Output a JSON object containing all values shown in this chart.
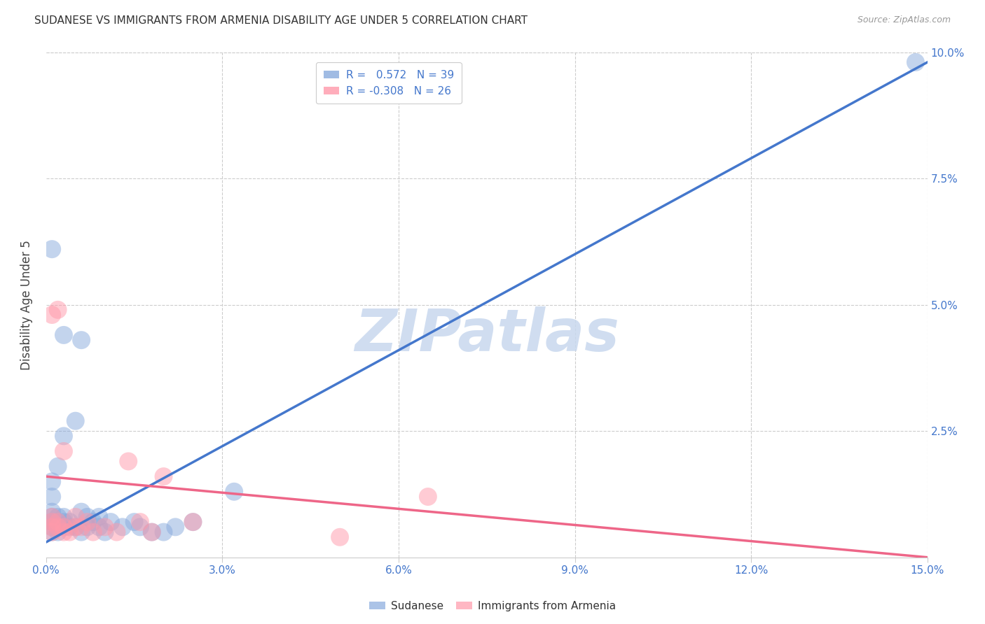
{
  "title": "SUDANESE VS IMMIGRANTS FROM ARMENIA DISABILITY AGE UNDER 5 CORRELATION CHART",
  "source": "Source: ZipAtlas.com",
  "ylabel": "Disability Age Under 5",
  "watermark": "ZIPatlas",
  "xlim": [
    0.0,
    0.15
  ],
  "ylim": [
    0.0,
    0.1
  ],
  "xtick_vals": [
    0.0,
    0.03,
    0.06,
    0.09,
    0.12,
    0.15
  ],
  "xtick_labels": [
    "0.0%",
    "3.0%",
    "6.0%",
    "9.0%",
    "12.0%",
    "15.0%"
  ],
  "ytick_vals": [
    0.0,
    0.025,
    0.05,
    0.075,
    0.1
  ],
  "ytick_labels": [
    "",
    "2.5%",
    "5.0%",
    "7.5%",
    "10.0%"
  ],
  "blue_R": 0.572,
  "blue_N": 39,
  "pink_R": -0.308,
  "pink_N": 26,
  "blue_color": "#88AADD",
  "pink_color": "#FF99AA",
  "line_blue": "#4477CC",
  "line_pink": "#EE6688",
  "blue_line_x": [
    0.0,
    0.15
  ],
  "blue_line_y": [
    0.003,
    0.098
  ],
  "pink_line_x": [
    0.0,
    0.15
  ],
  "pink_line_y": [
    0.016,
    0.0
  ],
  "blue_x": [
    0.001,
    0.001,
    0.001,
    0.001,
    0.001,
    0.001,
    0.001,
    0.002,
    0.002,
    0.002,
    0.002,
    0.003,
    0.003,
    0.003,
    0.004,
    0.004,
    0.005,
    0.005,
    0.006,
    0.006,
    0.007,
    0.007,
    0.008,
    0.009,
    0.009,
    0.01,
    0.011,
    0.013,
    0.015,
    0.016,
    0.018,
    0.02,
    0.022,
    0.025,
    0.032,
    0.001,
    0.003,
    0.006,
    0.148
  ],
  "blue_y": [
    0.005,
    0.006,
    0.007,
    0.008,
    0.009,
    0.012,
    0.015,
    0.005,
    0.007,
    0.008,
    0.018,
    0.007,
    0.008,
    0.024,
    0.006,
    0.007,
    0.006,
    0.027,
    0.005,
    0.009,
    0.008,
    0.006,
    0.007,
    0.006,
    0.008,
    0.005,
    0.007,
    0.006,
    0.007,
    0.006,
    0.005,
    0.005,
    0.006,
    0.007,
    0.013,
    0.061,
    0.044,
    0.043,
    0.098
  ],
  "pink_x": [
    0.001,
    0.001,
    0.001,
    0.001,
    0.001,
    0.002,
    0.002,
    0.002,
    0.003,
    0.003,
    0.003,
    0.004,
    0.005,
    0.005,
    0.006,
    0.007,
    0.008,
    0.01,
    0.012,
    0.014,
    0.016,
    0.018,
    0.02,
    0.025,
    0.05,
    0.065
  ],
  "pink_y": [
    0.005,
    0.006,
    0.007,
    0.008,
    0.048,
    0.006,
    0.007,
    0.049,
    0.005,
    0.006,
    0.021,
    0.005,
    0.006,
    0.008,
    0.006,
    0.007,
    0.005,
    0.006,
    0.005,
    0.019,
    0.007,
    0.005,
    0.016,
    0.007,
    0.004,
    0.012
  ]
}
